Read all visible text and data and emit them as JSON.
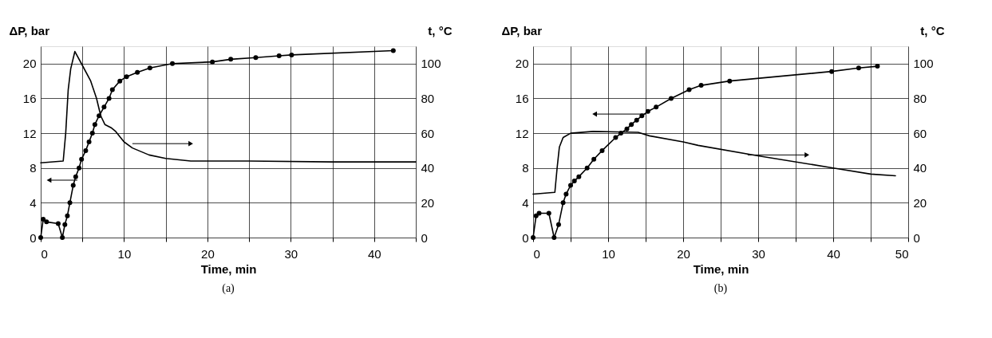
{
  "chart_data": [
    {
      "type": "line",
      "xlabel": "Time, min",
      "ylabel": "ΔP, bar",
      "y2label": "t, °C",
      "xlim": [
        0,
        45
      ],
      "xticks": [
        0,
        {
          "value": 5,
          "label": null
        },
        10,
        {
          "value": 15,
          "label": null
        },
        20,
        {
          "value": 25,
          "label": null
        },
        30,
        {
          "value": 35,
          "label": null
        },
        40,
        {
          "value": 45,
          "label": null
        }
      ],
      "ylim": [
        0,
        22
      ],
      "yticks": [
        0,
        4,
        8,
        12,
        16,
        20
      ],
      "y2lim": [
        0,
        110
      ],
      "y2ticks": [
        0,
        20,
        40,
        60,
        80,
        100
      ],
      "grid": true,
      "annotations": [
        "(a)"
      ],
      "series": [
        {
          "color": "#000000",
          "marker": "circle",
          "axis": "y",
          "x": [
            0,
            0.3,
            0.7,
            2.1,
            2.6,
            2.9,
            3.2,
            3.5,
            3.9,
            4.2,
            4.6,
            4.9,
            5.4,
            5.8,
            6.2,
            6.5,
            7,
            7.6,
            8.2,
            8.6,
            9.5,
            10.3,
            11.6,
            13.1,
            15.8,
            20.6,
            22.8,
            25.8,
            28.6,
            30.1,
            42.3
          ],
          "values": [
            0,
            2.1,
            1.8,
            1.6,
            0,
            1.5,
            2.5,
            4,
            6,
            7,
            8,
            9,
            10,
            11,
            12,
            13,
            14,
            15,
            16,
            17,
            18,
            18.5,
            19,
            19.5,
            20,
            20.2,
            20.5,
            20.7,
            20.9,
            21,
            21.5
          ]
        },
        {
          "color": "#000000",
          "marker": "none",
          "axis": "y2",
          "x": [
            0,
            2.7,
            3.0,
            3.3,
            3.6,
            4.1,
            5,
            6,
            6.7,
            7.2,
            7.7,
            8.5,
            9,
            10,
            11,
            13,
            15,
            18,
            25,
            35,
            45
          ],
          "values": [
            43,
            44,
            60,
            85,
            97,
            107,
            99,
            90,
            80,
            70,
            65,
            63,
            61,
            55,
            51.5,
            47.5,
            45.5,
            44,
            44,
            43.5,
            43.5
          ]
        }
      ]
    },
    {
      "type": "line",
      "xlabel": "Time, min",
      "ylabel": "ΔP, bar",
      "y2label": "t, °C",
      "xlim": [
        0,
        50
      ],
      "xticks": [
        0,
        {
          "value": 5,
          "label": null
        },
        10,
        {
          "value": 15,
          "label": null
        },
        20,
        {
          "value": 25,
          "label": null
        },
        30,
        {
          "value": 35,
          "label": null
        },
        40,
        {
          "value": 45,
          "label": null
        },
        50
      ],
      "ylim": [
        0,
        22
      ],
      "yticks": [
        0,
        4,
        8,
        12,
        16,
        20
      ],
      "y2lim": [
        0,
        110
      ],
      "y2ticks": [
        0,
        20,
        40,
        60,
        80,
        100
      ],
      "grid": true,
      "annotations": [
        "(b)"
      ],
      "series": [
        {
          "color": "#000000",
          "marker": "circle",
          "axis": "y",
          "x": [
            0,
            0.4,
            0.8,
            2.1,
            2.8,
            3.4,
            4.0,
            4.4,
            5.0,
            5.5,
            6.1,
            7.2,
            8.1,
            9.2,
            11,
            11.7,
            12.5,
            13.1,
            13.8,
            14.5,
            15.3,
            16.4,
            18.4,
            20.8,
            22.4,
            26.2,
            39.8,
            43.4,
            45.9
          ],
          "values": [
            0,
            2.5,
            2.8,
            2.8,
            0,
            1.5,
            4,
            5,
            6,
            6.5,
            7,
            8,
            9,
            10,
            11.5,
            12,
            12.5,
            13,
            13.5,
            14,
            14.5,
            15,
            16,
            17,
            17.5,
            18,
            19.1,
            19.5,
            19.7
          ]
        },
        {
          "color": "#000000",
          "marker": "none",
          "axis": "y2",
          "x": [
            0,
            2.9,
            3.2,
            3.5,
            4,
            5,
            8,
            14,
            15.5,
            20,
            22,
            30,
            40,
            45,
            48.3
          ],
          "values": [
            25,
            26,
            40,
            52,
            57.5,
            60,
            61,
            60.5,
            58.5,
            55,
            53,
            47,
            40,
            36.5,
            35.5
          ]
        }
      ]
    }
  ]
}
